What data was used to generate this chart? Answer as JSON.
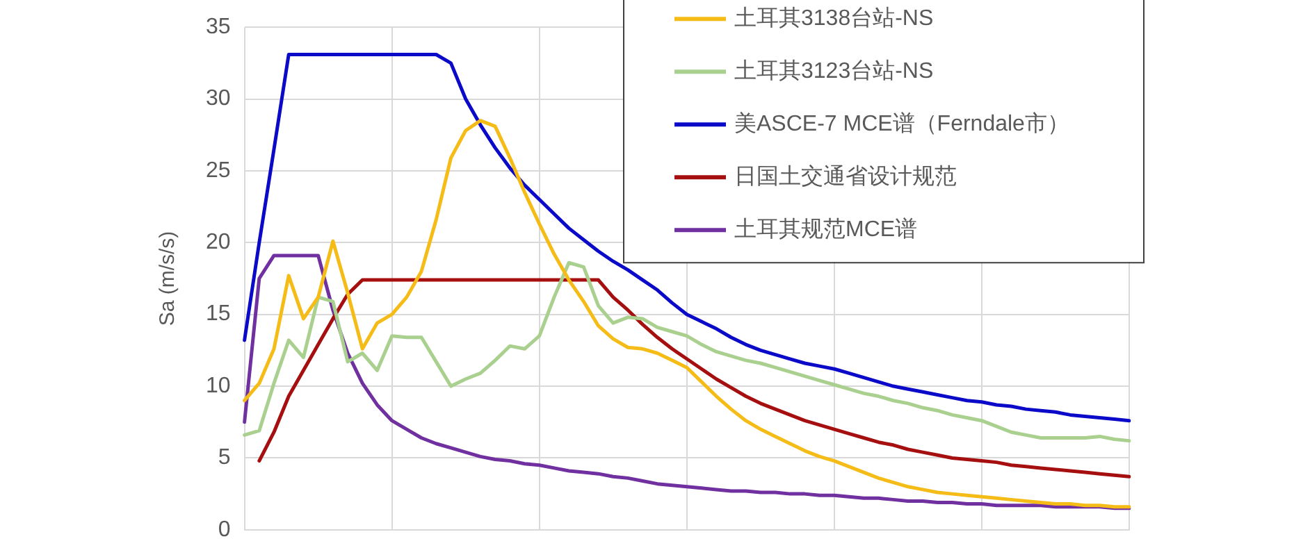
{
  "chart_data": {
    "type": "line",
    "ylabel": "Sa (m/s/s)",
    "categories": [
      null,
      null,
      null,
      null,
      null,
      null,
      null,
      null,
      null,
      null,
      null,
      null,
      null,
      null,
      null,
      null,
      null,
      null,
      null,
      null,
      null,
      null,
      null,
      null,
      null,
      null,
      null,
      null,
      null,
      null,
      null,
      null,
      null,
      null,
      null,
      null,
      null,
      null,
      null,
      null,
      null,
      null,
      null,
      null,
      null,
      null,
      null,
      null,
      null,
      null,
      null,
      null,
      null,
      null,
      null,
      null,
      null,
      null,
      null,
      null,
      null
    ],
    "series": [
      {
        "name": "土耳其3138台站-NS",
        "color": "#f5bc18",
        "values": [
          9.0,
          10.2,
          12.6,
          17.7,
          14.7,
          16.2,
          20.1,
          16.5,
          12.6,
          14.4,
          15.0,
          16.2,
          18.0,
          21.6,
          25.9,
          27.8,
          28.5,
          28.1,
          25.9,
          23.5,
          21.3,
          19.2,
          17.4,
          15.9,
          14.2,
          13.3,
          12.7,
          12.6,
          12.3,
          11.8,
          11.3,
          10.3,
          9.3,
          8.4,
          7.6,
          7.0,
          6.5,
          6.0,
          5.5,
          5.1,
          4.8,
          4.4,
          4.0,
          3.6,
          3.3,
          3.0,
          2.8,
          2.6,
          2.5,
          2.4,
          2.3,
          2.2,
          2.1,
          2.0,
          1.9,
          1.8,
          1.8,
          1.7,
          1.7,
          1.6,
          1.6
        ]
      },
      {
        "name": "土耳其3123台站-NS",
        "color": "#a9d08e",
        "values": [
          6.6,
          6.9,
          10.2,
          13.2,
          12.0,
          16.2,
          15.9,
          11.7,
          12.3,
          11.1,
          13.5,
          13.4,
          13.4,
          11.7,
          10.0,
          10.5,
          10.9,
          11.8,
          12.8,
          12.6,
          13.5,
          16.2,
          18.6,
          18.3,
          15.6,
          14.4,
          14.8,
          14.7,
          14.1,
          13.8,
          13.5,
          12.9,
          12.4,
          12.1,
          11.8,
          11.6,
          11.3,
          11.0,
          10.7,
          10.4,
          10.1,
          9.8,
          9.5,
          9.3,
          9.0,
          8.8,
          8.5,
          8.3,
          8.0,
          7.8,
          7.6,
          7.2,
          6.8,
          6.6,
          6.4,
          6.4,
          6.4,
          6.4,
          6.5,
          6.3,
          6.2
        ]
      },
      {
        "name": "美ASCE-7 MCE谱（Ferndale市）",
        "color": "#0a0ac8",
        "values": [
          13.2,
          20.0,
          26.5,
          33.1,
          33.1,
          33.1,
          33.1,
          33.1,
          33.1,
          33.1,
          33.1,
          33.1,
          33.1,
          33.1,
          32.5,
          30.0,
          28.2,
          26.6,
          25.2,
          24.0,
          23.0,
          22.0,
          21.0,
          20.2,
          19.4,
          18.7,
          18.1,
          17.4,
          16.7,
          15.8,
          15.0,
          14.5,
          14.0,
          13.4,
          12.9,
          12.5,
          12.2,
          11.9,
          11.6,
          11.4,
          11.2,
          10.9,
          10.6,
          10.3,
          10.0,
          9.8,
          9.6,
          9.4,
          9.2,
          9.0,
          8.9,
          8.7,
          8.6,
          8.4,
          8.3,
          8.2,
          8.0,
          7.9,
          7.8,
          7.7,
          7.6
        ]
      },
      {
        "name": "日国土交通省设计规范",
        "color": "#a50f0f",
        "values": [
          null,
          4.8,
          6.8,
          9.3,
          11.1,
          12.9,
          14.7,
          16.4,
          17.4,
          17.4,
          17.4,
          17.4,
          17.4,
          17.4,
          17.4,
          17.4,
          17.4,
          17.4,
          17.4,
          17.4,
          17.4,
          17.4,
          17.4,
          17.4,
          17.4,
          16.2,
          15.3,
          14.3,
          13.4,
          12.6,
          11.9,
          11.2,
          10.5,
          9.9,
          9.3,
          8.8,
          8.4,
          8.0,
          7.6,
          7.3,
          7.0,
          6.7,
          6.4,
          6.1,
          5.9,
          5.6,
          5.4,
          5.2,
          5.0,
          4.9,
          4.8,
          4.7,
          4.5,
          4.4,
          4.3,
          4.2,
          4.1,
          4.0,
          3.9,
          3.8,
          3.7
        ]
      },
      {
        "name": "土耳其规范MCE谱",
        "color": "#7030a0",
        "values": [
          7.5,
          17.5,
          19.1,
          19.1,
          19.1,
          19.1,
          15.3,
          12.3,
          10.2,
          8.7,
          7.6,
          7.0,
          6.4,
          6.0,
          5.7,
          5.4,
          5.1,
          4.9,
          4.8,
          4.6,
          4.5,
          4.3,
          4.1,
          4.0,
          3.9,
          3.7,
          3.6,
          3.4,
          3.2,
          3.1,
          3.0,
          2.9,
          2.8,
          2.7,
          2.7,
          2.6,
          2.6,
          2.5,
          2.5,
          2.4,
          2.4,
          2.3,
          2.2,
          2.2,
          2.1,
          2.0,
          2.0,
          1.9,
          1.9,
          1.8,
          1.8,
          1.7,
          1.7,
          1.7,
          1.7,
          1.6,
          1.6,
          1.6,
          1.6,
          1.5,
          1.5
        ]
      }
    ],
    "ylim": [
      0,
      35
    ],
    "yticks": [
      0,
      5,
      10,
      15,
      20,
      25,
      30,
      35
    ],
    "grid": true,
    "legend": "top right",
    "tick_labels": "y",
    "marker": "none",
    "line_style": "solid"
  }
}
